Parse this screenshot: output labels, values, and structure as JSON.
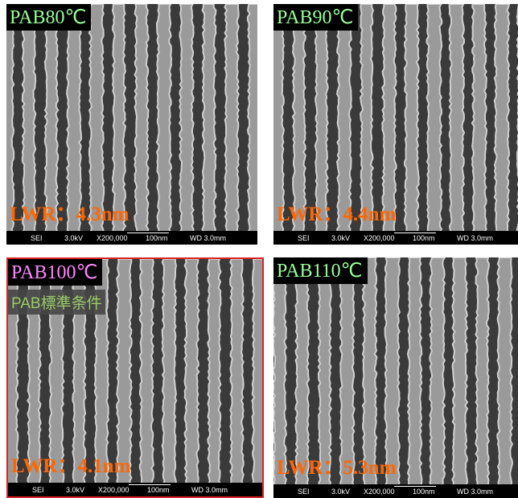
{
  "panels": [
    {
      "label": "PAB80℃",
      "lwr": "LWR：4.3nm",
      "footer": [
        "SEI",
        "3.0kV",
        "X200,000",
        "100nm",
        "WD 3.0mm"
      ]
    },
    {
      "label": "PAB90℃",
      "lwr": "LWR：4.4nm",
      "footer": [
        "SEI",
        "3.0kV",
        "X200,000",
        "100nm",
        "WD 3.0mm"
      ]
    },
    {
      "label": "PAB100℃",
      "note": "PAB標準条件",
      "lwr": "LWR：4.1nm",
      "footer": [
        "SEI",
        "3.0kV",
        "X200,000",
        "100nm",
        "WD 3.0mm"
      ]
    },
    {
      "label": "PAB110℃",
      "lwr": "LWR：5.3nm",
      "footer": [
        "SEI",
        "3.0kV",
        "X200,000",
        "100nm",
        "WD 3.0mm"
      ]
    }
  ]
}
